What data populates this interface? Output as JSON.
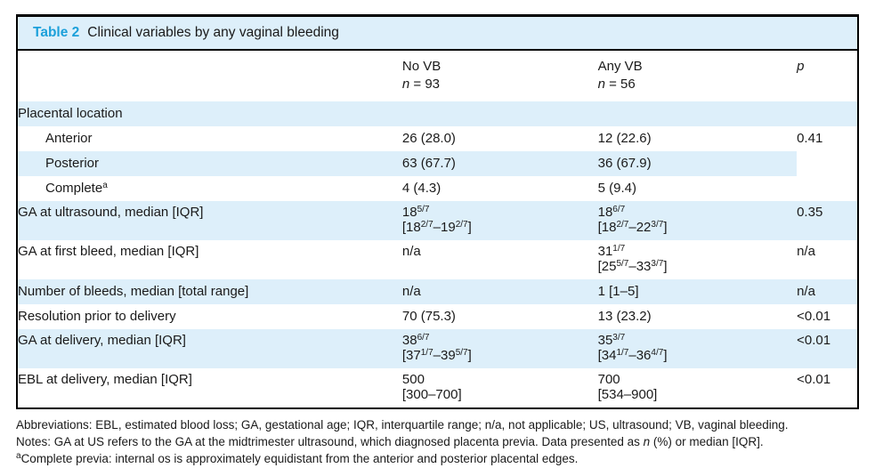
{
  "table": {
    "label": "Table 2",
    "title": "Clinical variables by any vaginal bleeding",
    "columns": {
      "variable": "",
      "no_vb": "No VB\n*n* = 93",
      "any_vb": "Any VB\n*n* = 56",
      "p": "*p*"
    },
    "rows": [
      {
        "label": "Placental location",
        "no_vb": "",
        "any_vb": "",
        "p": ""
      },
      {
        "label": "Anterior",
        "no_vb": "26 (28.0)",
        "any_vb": "12 (22.6)",
        "p": "0.41"
      },
      {
        "label": "Posterior",
        "no_vb": "63 (67.7)",
        "any_vb": "36 (67.9)",
        "p": ""
      },
      {
        "label": "Complete^a^",
        "no_vb": "4 (4.3)",
        "any_vb": "5 (9.4)",
        "p": ""
      },
      {
        "label": "GA at ultrasound, median [IQR]",
        "no_vb": "18^5/7^\n[18^2/7^–19^2/7^]",
        "any_vb": "18^6/7^\n[18^2/7^–22^3/7^]",
        "p": "0.35"
      },
      {
        "label": "GA at first bleed, median [IQR]",
        "no_vb": "n/a",
        "any_vb": "31^1/7^\n[25^5/7^–33^3/7^]",
        "p": "n/a"
      },
      {
        "label": "Number of bleeds, median [total range]",
        "no_vb": "n/a",
        "any_vb": "1 [1–5]",
        "p": "n/a"
      },
      {
        "label": "Resolution prior to delivery",
        "no_vb": "70 (75.3)",
        "any_vb": "13 (23.2)",
        "p": "<0.01"
      },
      {
        "label": "GA at delivery, median [IQR]",
        "no_vb": "38^6/7^\n[37^1/7^–39^5/7^]",
        "any_vb": "35^3/7^\n[34^1/7^–36^4/7^]",
        "p": "<0.01"
      },
      {
        "label": "EBL at delivery, median [IQR]",
        "no_vb": "500\n[300–700]",
        "any_vb": "700\n[534–900]",
        "p": "<0.01"
      }
    ]
  },
  "footnotes": {
    "abbreviations": "Abbreviations: EBL, estimated blood loss; GA, gestational age; IQR, interquartile range; n/a, not applicable; US, ultrasound; VB, vaginal bleeding.",
    "notes": "Notes: GA at US refers to the GA at the midtrimester ultrasound, which diagnosed placenta previa. Data presented as *n* (%) or median [IQR].",
    "footnote_a": "^a^Complete previa: internal os is approximately equidistant from the anterior and posterior placental edges."
  },
  "colors": {
    "accent_blue": "#1ca0da",
    "row_shade": "#ddeffa",
    "border": "#000000",
    "text": "#1a1a1a"
  }
}
